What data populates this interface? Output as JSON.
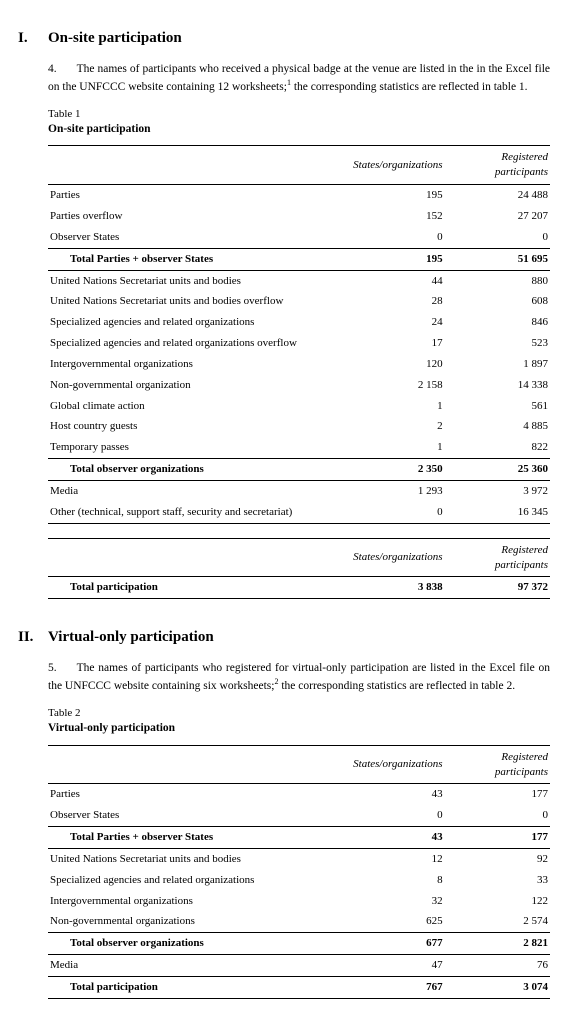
{
  "section1": {
    "roman": "I.",
    "title": "On-site participation",
    "para_num": "4.",
    "para_text_a": "The names of participants who received a physical badge at the venue are listed in the in the Excel file on the UNFCCC website containing 12 worksheets;",
    "footref1": "1",
    "para_text_b": " the corresponding statistics are reflected in table 1.",
    "table_label": "Table 1",
    "table_title": "On-site participation",
    "headers": {
      "blank": "",
      "col1": "States/organizations",
      "col2": "Registered participants"
    },
    "rows": [
      {
        "label": "Parties",
        "c1": "195",
        "c2": "24 488"
      },
      {
        "label": "Parties overflow",
        "c1": "152",
        "c2": "27 207"
      },
      {
        "label": "Observer States",
        "c1": "0",
        "c2": "0"
      }
    ],
    "subtotal1": {
      "label": "Total Parties + observer States",
      "c1": "195",
      "c2": "51 695"
    },
    "rows2": [
      {
        "label": "United Nations Secretariat units and bodies",
        "c1": "44",
        "c2": "880"
      },
      {
        "label": "United Nations Secretariat units and bodies overflow",
        "c1": "28",
        "c2": "608"
      },
      {
        "label": "Specialized agencies and related organizations",
        "c1": "24",
        "c2": "846"
      },
      {
        "label": "Specialized agencies and related organizations overflow",
        "c1": "17",
        "c2": "523"
      },
      {
        "label": "Intergovernmental organizations",
        "c1": "120",
        "c2": "1 897"
      },
      {
        "label": "Non-governmental organization",
        "c1": "2 158",
        "c2": "14 338"
      },
      {
        "label": "Global climate action",
        "c1": "1",
        "c2": "561"
      },
      {
        "label": "Host country guests",
        "c1": "2",
        "c2": "4 885"
      },
      {
        "label": "Temporary passes",
        "c1": "1",
        "c2": "822"
      }
    ],
    "subtotal2": {
      "label": "Total observer organizations",
      "c1": "2 350",
      "c2": "25 360"
    },
    "rows3": [
      {
        "label": "Media",
        "c1": "1 293",
        "c2": "3 972"
      },
      {
        "label": "Other (technical, support staff, security and secretariat)",
        "c1": "0",
        "c2": "16 345"
      }
    ],
    "total_headers": {
      "col1": "States/organizations",
      "col2": "Registered participants"
    },
    "total": {
      "label": "Total participation",
      "c1": "3 838",
      "c2": "97 372"
    }
  },
  "section2": {
    "roman": "II.",
    "title": "Virtual-only participation",
    "para_num": "5.",
    "para_text_a": "The names of participants who registered for virtual-only participation are listed in the Excel file on the UNFCCC website containing six worksheets;",
    "footref2": "2",
    "para_text_b": " the corresponding statistics are reflected in table 2.",
    "table_label": "Table 2",
    "table_title": "Virtual-only participation",
    "headers": {
      "blank": "",
      "col1": "States/organizations",
      "col2": "Registered participants"
    },
    "rows": [
      {
        "label": "Parties",
        "c1": "43",
        "c2": "177"
      },
      {
        "label": "Observer States",
        "c1": "0",
        "c2": "0"
      }
    ],
    "subtotal1": {
      "label": "Total Parties + observer States",
      "c1": "43",
      "c2": "177"
    },
    "rows2": [
      {
        "label": "United Nations Secretariat units and bodies",
        "c1": "12",
        "c2": "92"
      },
      {
        "label": "Specialized agencies and related organizations",
        "c1": "8",
        "c2": "33"
      },
      {
        "label": "Intergovernmental organizations",
        "c1": "32",
        "c2": "122"
      },
      {
        "label": "Non-governmental organizations",
        "c1": "625",
        "c2": "2 574"
      }
    ],
    "subtotal2": {
      "label": "Total observer organizations",
      "c1": "677",
      "c2": "2 821"
    },
    "rows3": [
      {
        "label": "Media",
        "c1": "47",
        "c2": "76"
      }
    ],
    "total": {
      "label": "Total participation",
      "c1": "767",
      "c2": "3 074"
    }
  },
  "layout": {
    "col_widths": {
      "label_pct": 58,
      "c1_pct": 21,
      "c2_pct": 21
    }
  }
}
